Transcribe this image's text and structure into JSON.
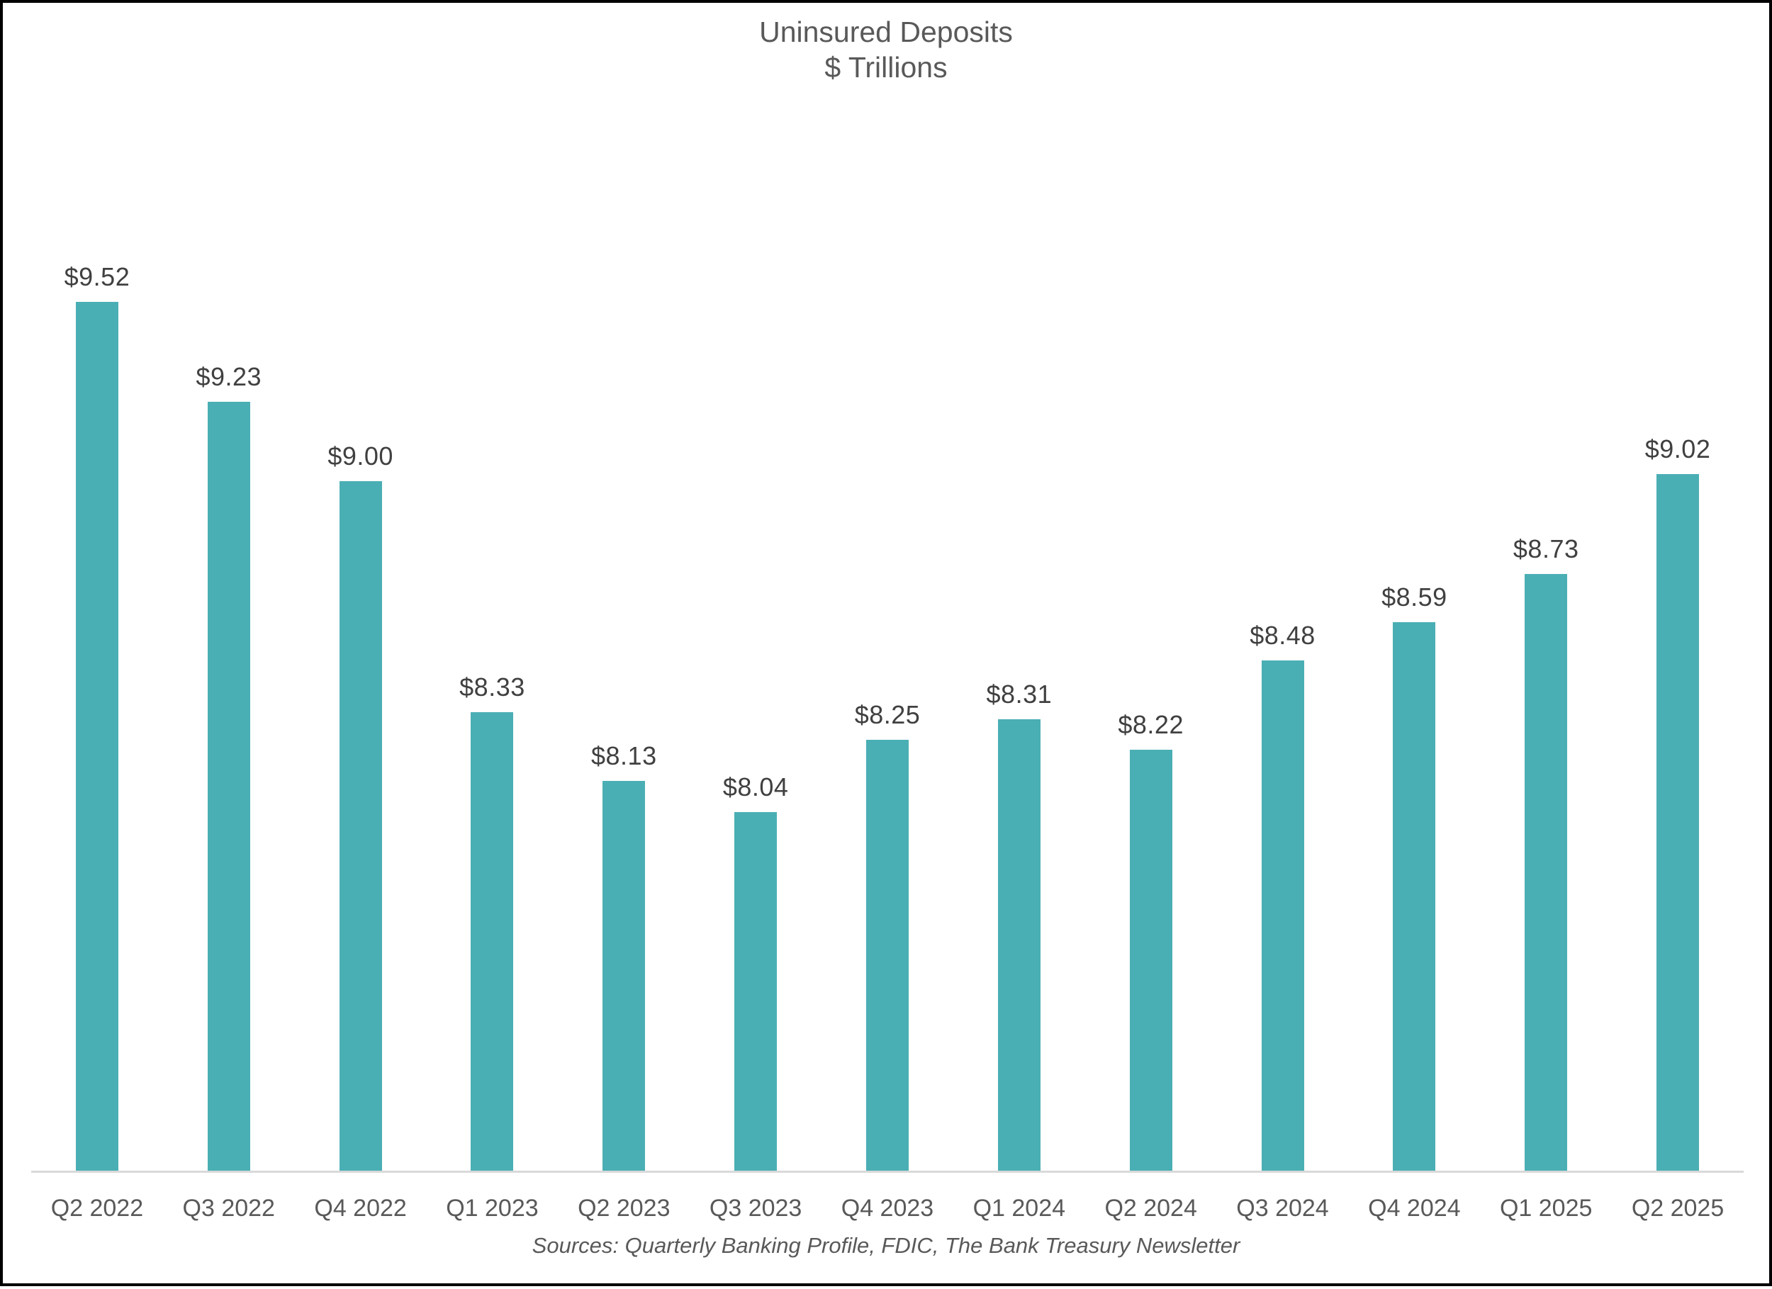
{
  "title": {
    "line1": "Uninsured Deposits",
    "line2": "$ Trillions"
  },
  "source_note": "Sources: Quarterly Banking Profile, FDIC, The Bank Treasury Newsletter",
  "colors": {
    "bar": "#4aafb4",
    "title_text": "#595959",
    "value_label_text": "#404040",
    "category_label_text": "#595959",
    "axis_line": "#d9d9d9",
    "background": "#ffffff",
    "border": "#000000"
  },
  "chart_data": {
    "type": "bar",
    "title": "Uninsured Deposits",
    "subtitle": "$ Trillions",
    "categories": [
      "Q2 2022",
      "Q3 2022",
      "Q4 2022",
      "Q1 2023",
      "Q2 2023",
      "Q3 2023",
      "Q4 2023",
      "Q1 2024",
      "Q2 2024",
      "Q3 2024",
      "Q4 2024",
      "Q1 2025",
      "Q2 2025"
    ],
    "values": [
      9.52,
      9.23,
      9.0,
      8.33,
      8.13,
      8.04,
      8.25,
      8.31,
      8.22,
      8.48,
      8.59,
      8.73,
      9.02
    ],
    "data_labels": [
      "$9.52",
      "$9.23",
      "$9.00",
      "$8.33",
      "$8.13",
      "$8.04",
      "$8.25",
      "$8.31",
      "$8.22",
      "$8.48",
      "$8.59",
      "$8.73",
      "$9.02"
    ],
    "xlabel": "",
    "ylabel": "",
    "ylim": [
      7.0,
      9.7
    ],
    "grid": false,
    "legend": false,
    "data_labels_shown": true,
    "y_axis_shown": false,
    "bars_color_uniform": true
  }
}
